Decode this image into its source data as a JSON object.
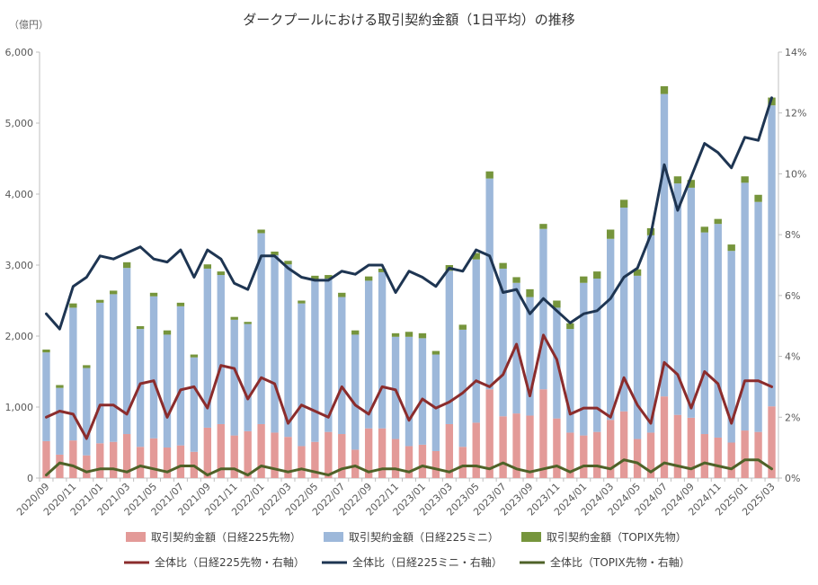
{
  "colors": {
    "bar_n225": "#E39A98",
    "bar_mini": "#9DB8DA",
    "bar_topix": "#76953C",
    "line_n225": "#8B2C2C",
    "line_mini": "#1E3552",
    "line_topix": "#4F6228",
    "axis": "#BFBFBF"
  },
  "chart_data": {
    "type": "bar",
    "title": "ダークプールにおける取引契約金額（1日平均）の推移",
    "left_unit": "（億円）",
    "left_axis": {
      "min": 0,
      "max": 6000,
      "ticks": [
        "0",
        "1,000",
        "2,000",
        "3,000",
        "4,000",
        "5,000",
        "6,000"
      ]
    },
    "right_axis": {
      "min": 0,
      "max": 14,
      "ticks": [
        "0%",
        "2%",
        "4%",
        "6%",
        "8%",
        "10%",
        "12%",
        "14%"
      ]
    },
    "x_tick_labels": [
      "2020/09",
      "2020/11",
      "2021/01",
      "2021/03",
      "2021/05",
      "2021/07",
      "2021/09",
      "2021/11",
      "2022/01",
      "2022/03",
      "2022/05",
      "2022/07",
      "2022/09",
      "2022/11",
      "2023/01",
      "2023/03",
      "2023/05",
      "2023/07",
      "2023/09",
      "2023/11",
      "2024/01",
      "2024/03",
      "2024/05",
      "2024/07",
      "2024/09",
      "2024/11",
      "2025/01",
      "2025/03"
    ],
    "categories": [
      "2020/09",
      "2020/10",
      "2020/11",
      "2020/12",
      "2021/01",
      "2021/02",
      "2021/03",
      "2021/04",
      "2021/05",
      "2021/06",
      "2021/07",
      "2021/08",
      "2021/09",
      "2021/10",
      "2021/11",
      "2021/12",
      "2022/01",
      "2022/02",
      "2022/03",
      "2022/04",
      "2022/05",
      "2022/06",
      "2022/07",
      "2022/08",
      "2022/09",
      "2022/10",
      "2022/11",
      "2022/12",
      "2023/01",
      "2023/02",
      "2023/03",
      "2023/04",
      "2023/05",
      "2023/06",
      "2023/07",
      "2023/08",
      "2023/09",
      "2023/10",
      "2023/11",
      "2023/12",
      "2024/01",
      "2024/02",
      "2024/03",
      "2024/04",
      "2024/05",
      "2024/06",
      "2024/07",
      "2024/08",
      "2024/09",
      "2024/10",
      "2024/11",
      "2024/12",
      "2025/01",
      "2025/02",
      "2025/03"
    ],
    "series": [
      {
        "name": "取引契約金額（日経225先物）",
        "kind": "bar",
        "axis": "left",
        "values": [
          520,
          330,
          530,
          320,
          490,
          510,
          620,
          440,
          560,
          430,
          460,
          370,
          710,
          760,
          600,
          660,
          760,
          640,
          580,
          450,
          510,
          650,
          620,
          400,
          700,
          700,
          550,
          450,
          470,
          380,
          760,
          440,
          780,
          1250,
          870,
          910,
          880,
          1250,
          840,
          640,
          600,
          650,
          820,
          940,
          550,
          640,
          1150,
          890,
          850,
          620,
          570,
          500,
          670,
          650,
          1010
        ]
      },
      {
        "name": "取引契約金額（日経225ミニ）",
        "kind": "bar",
        "axis": "left",
        "values": [
          1250,
          940,
          1870,
          1230,
          1980,
          2080,
          2340,
          1660,
          2000,
          1590,
          1960,
          1330,
          2240,
          2100,
          1630,
          1510,
          2690,
          2500,
          2430,
          2010,
          2290,
          2160,
          1930,
          1620,
          2080,
          2200,
          1440,
          1540,
          1500,
          1360,
          2160,
          1650,
          2300,
          2970,
          2080,
          1840,
          1670,
          2260,
          1560,
          1460,
          2150,
          2160,
          2550,
          2870,
          2300,
          2780,
          4260,
          3260,
          3240,
          2840,
          3010,
          2700,
          3490,
          3240,
          4240
        ]
      },
      {
        "name": "取引契約金額（TOPIX先物）",
        "kind": "bar",
        "axis": "left",
        "values": [
          40,
          40,
          60,
          40,
          40,
          50,
          80,
          40,
          50,
          60,
          50,
          40,
          60,
          50,
          40,
          30,
          50,
          50,
          50,
          40,
          50,
          50,
          60,
          60,
          60,
          50,
          50,
          70,
          70,
          50,
          80,
          70,
          90,
          100,
          80,
          80,
          110,
          70,
          100,
          80,
          90,
          100,
          130,
          110,
          90,
          100,
          110,
          100,
          110,
          80,
          70,
          90,
          90,
          100,
          110
        ]
      },
      {
        "name": "全体比（日経225先物・右軸）",
        "kind": "line",
        "axis": "right",
        "values": [
          2.0,
          2.2,
          2.1,
          1.3,
          2.4,
          2.4,
          2.1,
          3.1,
          3.2,
          2.0,
          2.9,
          3.0,
          2.3,
          3.7,
          3.6,
          2.6,
          3.3,
          3.1,
          1.8,
          2.4,
          2.2,
          2.0,
          3.0,
          2.4,
          2.1,
          3.0,
          2.9,
          1.9,
          2.6,
          2.3,
          2.5,
          2.8,
          3.2,
          3.0,
          3.4,
          4.4,
          2.7,
          4.7,
          3.9,
          2.1,
          2.3,
          2.3,
          2.0,
          3.3,
          2.4,
          1.8,
          3.8,
          3.4,
          2.3,
          3.5,
          3.1,
          1.8,
          3.2,
          3.2,
          3.0
        ]
      },
      {
        "name": "全体比（日経225ミニ・右軸）",
        "kind": "line",
        "axis": "right",
        "values": [
          5.4,
          4.9,
          6.3,
          6.6,
          7.3,
          7.2,
          7.4,
          7.6,
          7.2,
          7.1,
          7.5,
          6.6,
          7.5,
          7.2,
          6.4,
          6.2,
          7.3,
          7.3,
          6.9,
          6.6,
          6.5,
          6.5,
          6.8,
          6.7,
          7.0,
          7.0,
          6.1,
          6.8,
          6.6,
          6.3,
          6.9,
          6.8,
          7.5,
          7.3,
          6.1,
          6.2,
          5.4,
          5.9,
          5.5,
          5.1,
          5.4,
          5.5,
          5.9,
          6.6,
          6.9,
          8.0,
          10.3,
          8.8,
          9.9,
          11.0,
          10.7,
          10.2,
          11.2,
          11.1,
          12.5
        ]
      },
      {
        "name": "全体比（TOPIX先物・右軸）",
        "kind": "line",
        "axis": "right",
        "values": [
          0.1,
          0.5,
          0.4,
          0.2,
          0.3,
          0.3,
          0.2,
          0.4,
          0.3,
          0.2,
          0.4,
          0.4,
          0.1,
          0.3,
          0.3,
          0.1,
          0.4,
          0.3,
          0.2,
          0.3,
          0.2,
          0.1,
          0.3,
          0.4,
          0.2,
          0.3,
          0.3,
          0.2,
          0.4,
          0.3,
          0.2,
          0.4,
          0.4,
          0.3,
          0.5,
          0.3,
          0.2,
          0.3,
          0.4,
          0.2,
          0.4,
          0.4,
          0.3,
          0.6,
          0.5,
          0.2,
          0.5,
          0.4,
          0.3,
          0.5,
          0.4,
          0.3,
          0.6,
          0.6,
          0.3
        ]
      }
    ],
    "legend_placement": "bottom",
    "grid": false
  }
}
